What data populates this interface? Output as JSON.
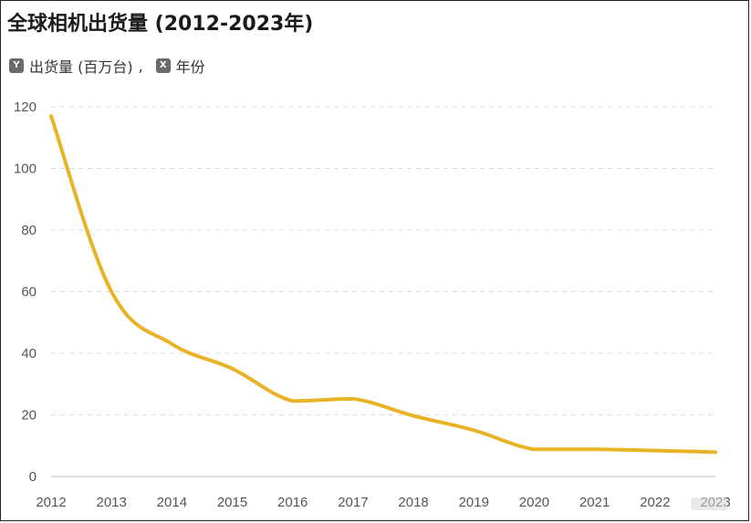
{
  "title": "全球相机出货量 (2012-2023年)",
  "axis_hints": {
    "y_badge": "Y",
    "y_label": "出货量 (百万台)",
    "separator": ",",
    "x_badge": "X",
    "x_label": "年份"
  },
  "colors": {
    "line": "#E8B326",
    "grid": "#dcdcdc",
    "tick_text": "#555555",
    "badge": "#6b6b6b"
  },
  "chart_data": {
    "type": "line",
    "title": "全球相机出货量 (2012-2023年)",
    "xlabel": "年份",
    "ylabel": "出货量 (百万台)",
    "categories": [
      "2012",
      "2013",
      "2014",
      "2015",
      "2016",
      "2017",
      "2018",
      "2019",
      "2020",
      "2021",
      "2022",
      "2023"
    ],
    "values": [
      117,
      60,
      43,
      35,
      24.5,
      25.2,
      19.7,
      15,
      8.8,
      8.8,
      8.4,
      7.9
    ],
    "yticks": [
      "0",
      "20",
      "40",
      "60",
      "80",
      "100",
      "120"
    ],
    "ylim": [
      0,
      120
    ],
    "grid": "horizontal dashed",
    "line_smooth": true
  }
}
